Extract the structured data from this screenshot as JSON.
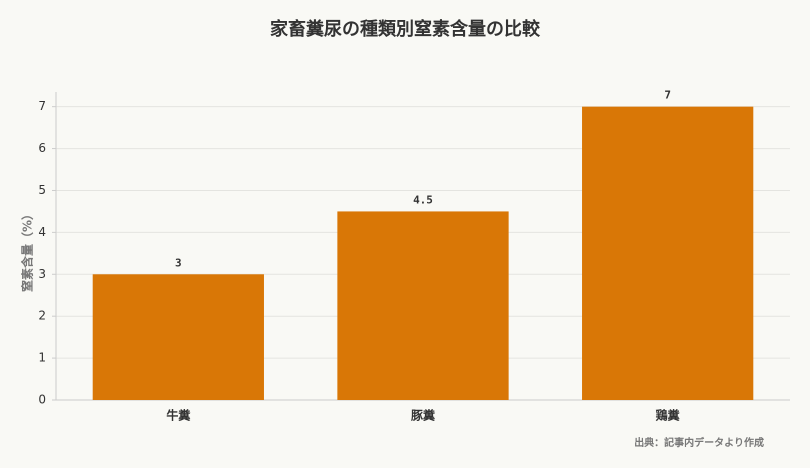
{
  "chart_data": {
    "type": "bar",
    "title": "家畜糞尿の種類別窒素含量の比較",
    "y_label": "窒素含量（%）",
    "categories": [
      "牛糞",
      "豚糞",
      "鶏糞"
    ],
    "values": [
      3,
      4.5,
      7
    ],
    "color": "#d97706",
    "ylim": [
      0,
      7.35
    ],
    "yticks": [
      0,
      1,
      2,
      3,
      4,
      5,
      6,
      7
    ],
    "grid": true,
    "source": "出典：記事内データより作成"
  }
}
